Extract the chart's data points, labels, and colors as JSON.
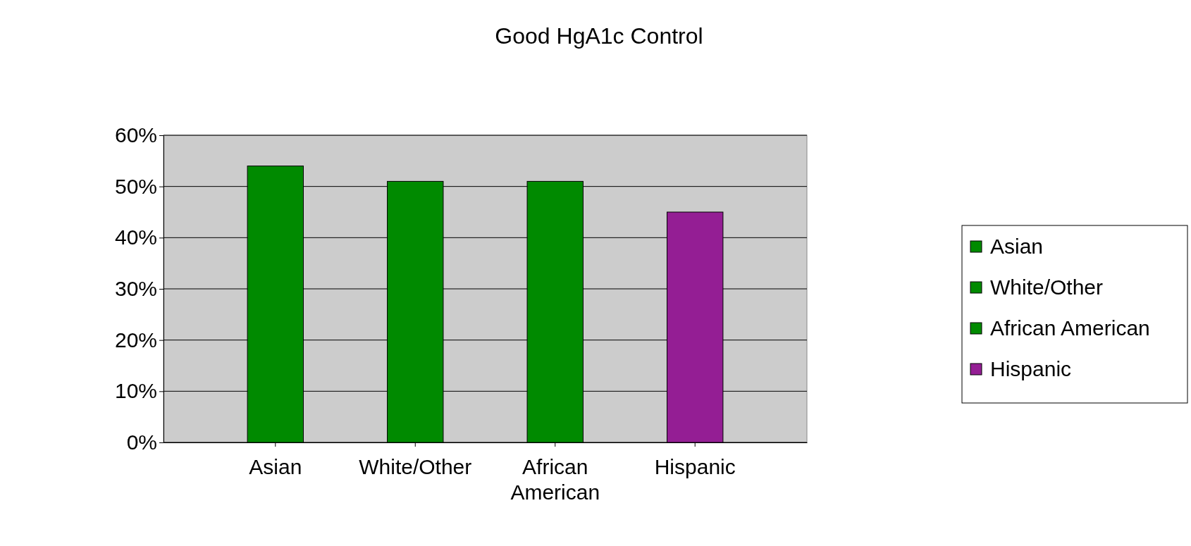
{
  "chart_data": {
    "type": "bar",
    "title": "Good HgA1c Control",
    "categories": [
      "Asian",
      "White/Other",
      "African American",
      "Hispanic"
    ],
    "stacked": true,
    "series": [
      {
        "name": "Asian",
        "color": "#008a00",
        "values": [
          54,
          null,
          null,
          null
        ]
      },
      {
        "name": "White/Other",
        "color": "#008a00",
        "values": [
          null,
          51,
          null,
          null
        ]
      },
      {
        "name": "African American",
        "color": "#008a00",
        "values": [
          null,
          null,
          51,
          null
        ]
      },
      {
        "name": "Hispanic",
        "color": "#941e94",
        "values": [
          null,
          null,
          null,
          45
        ]
      }
    ],
    "ylim": [
      0,
      60
    ],
    "yticks": [
      {
        "value": 0,
        "label": "0%"
      },
      {
        "value": 10,
        "label": "10%"
      },
      {
        "value": 20,
        "label": "20%"
      },
      {
        "value": 30,
        "label": "30%"
      },
      {
        "value": 40,
        "label": "40%"
      },
      {
        "value": 50,
        "label": "50%"
      },
      {
        "value": 60,
        "label": "60%"
      }
    ],
    "grid": "y",
    "legend": "right"
  }
}
